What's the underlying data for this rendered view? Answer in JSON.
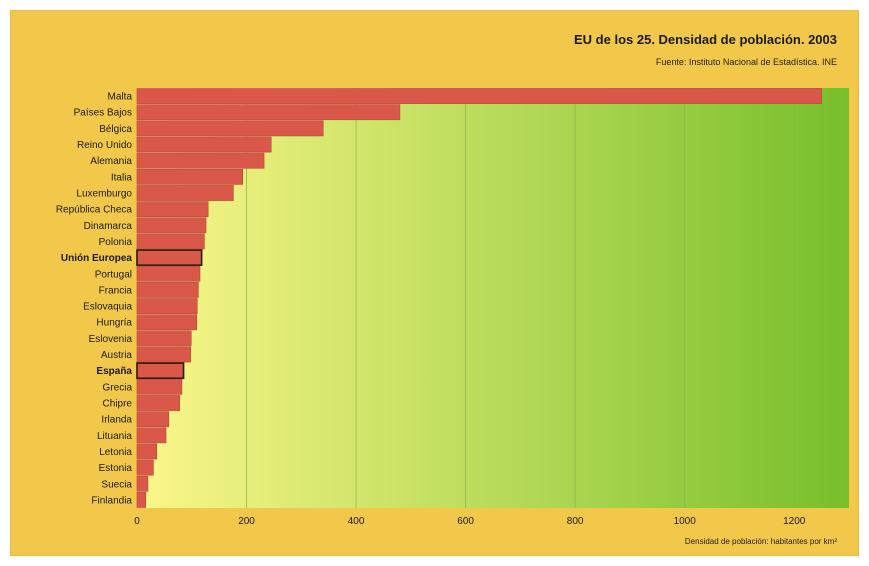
{
  "title": "EU de los 25. Densidad de población. 2003",
  "source": "Fuente: Instituto Nacional de Estadística. INE",
  "colors": {
    "background": "#f2c84b",
    "bar": "#d9584a",
    "bar_stroke": "#b9473b",
    "highlight_stroke": "#2a1a10",
    "gradient_start": "#fbf789",
    "gradient_end": "#77bf2b",
    "grid": "#8fae4a"
  },
  "chart_data": {
    "type": "bar",
    "orientation": "horizontal",
    "title": "EU de los 25. Densidad de población. 2003",
    "subtitle": "Fuente: Instituto Nacional de Estadística. INE",
    "xlabel": "Densidad de población: habitantes por km²",
    "ylabel": "",
    "xlim": [
      0,
      1300
    ],
    "xticks": [
      0,
      200,
      400,
      600,
      800,
      1000,
      1200
    ],
    "grid": true,
    "categories": [
      "Malta",
      "Países Bajos",
      "Bélgica",
      "Reino Unido",
      "Alemania",
      "Italia",
      "Luxemburgo",
      "República Checa",
      "Dinamarca",
      "Polonia",
      "Unión Europea",
      "Portugal",
      "Francia",
      "Eslovaquia",
      "Hungría",
      "Eslovenia",
      "Austria",
      "España",
      "Grecia",
      "Chipre",
      "Irlanda",
      "Lituania",
      "Letonia",
      "Estonia",
      "Suecia",
      "Finlandia"
    ],
    "values": [
      1250,
      480,
      340,
      245,
      232,
      193,
      176,
      130,
      126,
      123,
      118,
      115,
      112,
      110,
      109,
      99,
      98,
      85,
      82,
      78,
      58,
      53,
      36,
      30,
      20,
      16
    ],
    "highlighted": [
      "Unión Europea",
      "España"
    ]
  }
}
